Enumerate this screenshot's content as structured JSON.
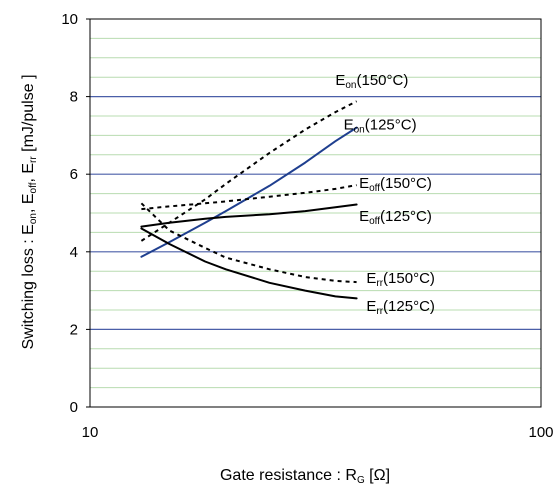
{
  "chart_data": {
    "type": "line",
    "x_scale": "log",
    "xlim": [
      10,
      100
    ],
    "ylim": [
      0,
      10
    ],
    "xlabel": "Gate resistance : R",
    "xlabel_sub": "G",
    "xlabel_unit": " [Ω]",
    "ylabel": "Switching loss : E",
    "ylabel_parts": [
      {
        "text": "Switching loss : E",
        "sub": false
      },
      {
        "text": "on",
        "sub": true
      },
      {
        "text": ", E",
        "sub": false
      },
      {
        "text": "off",
        "sub": true
      },
      {
        "text": ", E",
        "sub": false
      },
      {
        "text": "rr",
        "sub": true
      },
      {
        "text": " [mJ/pulse ]",
        "sub": false
      }
    ],
    "x_ticks": [
      {
        "value": 10,
        "label": "10"
      },
      {
        "value": 100,
        "label": "100"
      }
    ],
    "y_ticks": [
      {
        "value": 0,
        "label": "0"
      },
      {
        "value": 2,
        "label": "2"
      },
      {
        "value": 4,
        "label": "4"
      },
      {
        "value": 6,
        "label": "6"
      },
      {
        "value": 8,
        "label": "8"
      },
      {
        "value": 10,
        "label": "10"
      }
    ],
    "major_grid": [
      2,
      4,
      6,
      8
    ],
    "minor_grid": [
      0.5,
      1,
      1.5,
      2.5,
      3,
      3.5,
      4.5,
      5,
      5.5,
      6.5,
      7,
      7.5,
      8.5,
      9,
      9.5
    ],
    "colors": {
      "major_grid": "#4a5fa8",
      "minor_grid": "#b8dcb0",
      "solid": "#000000",
      "blue": "#1f3f8f"
    },
    "series": [
      {
        "name": "Eon(150°C)",
        "base": "E",
        "sub": "on",
        "temp": "(150°C)",
        "style": "dashed",
        "color": "#000000",
        "x": [
          13,
          15,
          18,
          20,
          25,
          30,
          35,
          39
        ],
        "y": [
          4.28,
          4.75,
          5.35,
          5.75,
          6.55,
          7.15,
          7.6,
          7.88
        ],
        "label_at": [
          35,
          8.3
        ]
      },
      {
        "name": "Eon(125°C)",
        "base": "E",
        "sub": "on",
        "temp": "(125°C)",
        "style": "solid",
        "color": "#1f3f8f",
        "x": [
          13,
          15,
          18,
          20,
          25,
          30,
          35,
          39
        ],
        "y": [
          3.87,
          4.25,
          4.75,
          5.05,
          5.7,
          6.3,
          6.85,
          7.2
        ],
        "label_at": [
          36.5,
          7.15
        ]
      },
      {
        "name": "Eoff(150°C)",
        "base": "E",
        "sub": "off",
        "temp": "(150°C)",
        "style": "dashed",
        "color": "#000000",
        "x": [
          13,
          15,
          18,
          20,
          25,
          30,
          35,
          39
        ],
        "y": [
          5.1,
          5.17,
          5.25,
          5.3,
          5.42,
          5.52,
          5.62,
          5.72
        ],
        "label_at": [
          39.5,
          5.65
        ]
      },
      {
        "name": "Eoff(125°C)",
        "base": "E",
        "sub": "off",
        "temp": "(125°C)",
        "style": "solid",
        "color": "#000000",
        "x": [
          13,
          15,
          18,
          20,
          25,
          30,
          35,
          39
        ],
        "y": [
          4.65,
          4.75,
          4.85,
          4.9,
          4.97,
          5.05,
          5.15,
          5.22
        ],
        "label_at": [
          39.5,
          4.8
        ]
      },
      {
        "name": "Err(150°C)",
        "base": "E",
        "sub": "rr",
        "temp": "(150°C)",
        "style": "dashed",
        "color": "#000000",
        "x": [
          13,
          15,
          18,
          20,
          25,
          30,
          35,
          39
        ],
        "y": [
          5.25,
          4.55,
          4.1,
          3.85,
          3.55,
          3.35,
          3.25,
          3.22
        ],
        "label_at": [
          41,
          3.2
        ]
      },
      {
        "name": "Err(125°C)",
        "base": "E",
        "sub": "rr",
        "temp": "(125°C)",
        "style": "solid",
        "color": "#000000",
        "x": [
          13,
          15,
          18,
          20,
          25,
          30,
          35,
          39
        ],
        "y": [
          4.6,
          4.2,
          3.75,
          3.55,
          3.2,
          3.0,
          2.85,
          2.8
        ],
        "label_at": [
          41,
          2.48
        ]
      }
    ],
    "grid": true,
    "legend": "none"
  }
}
